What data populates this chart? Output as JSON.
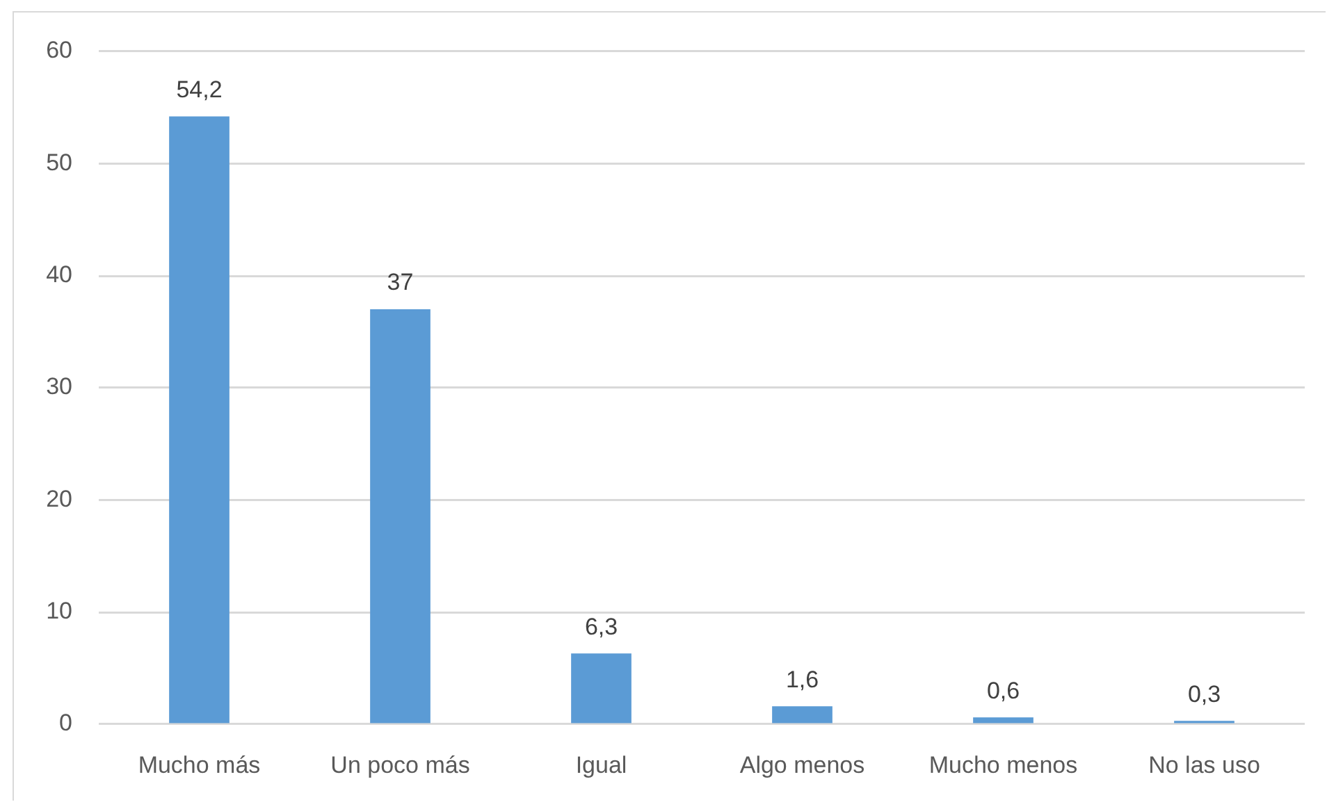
{
  "chart_data": {
    "type": "bar",
    "categories": [
      "Mucho más",
      "Un poco más",
      "Igual",
      "Algo menos",
      "Mucho menos",
      "No las uso"
    ],
    "values": [
      54.2,
      37,
      6.3,
      1.6,
      0.6,
      0.3
    ],
    "value_labels": [
      "54,2",
      "37",
      "6,3",
      "1,6",
      "0,6",
      "0,3"
    ],
    "color": "#5b9bd5",
    "ylim": [
      0,
      60
    ],
    "yticks": [
      0,
      10,
      20,
      30,
      40,
      50,
      60
    ],
    "grid": "y"
  }
}
